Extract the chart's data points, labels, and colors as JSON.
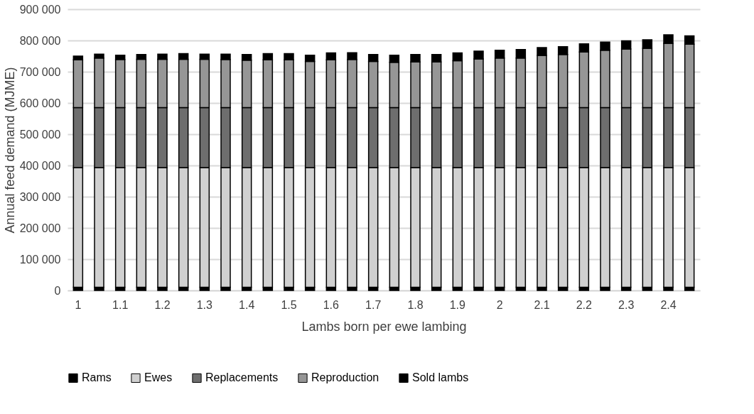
{
  "chart_data": {
    "type": "bar",
    "stacked": true,
    "xlabel": "Lambs born per ewe lambing",
    "ylabel": "Annual feed demand (MJME)",
    "categories": [
      "1",
      null,
      "1.1",
      null,
      "1.2",
      null,
      "1.3",
      null,
      "1.4",
      null,
      "1.5",
      null,
      "1.6",
      null,
      "1.7",
      null,
      "1.8",
      null,
      "1.9",
      null,
      "2",
      null,
      "2.1",
      null,
      "2.2",
      null,
      "2.3",
      null,
      "2.4",
      null
    ],
    "series": [
      {
        "name": "Rams",
        "color": "#000000",
        "values": [
          10000,
          10000,
          10000,
          10000,
          10000,
          10000,
          10000,
          10000,
          10000,
          10000,
          10000,
          10000,
          10000,
          10000,
          10000,
          10000,
          10000,
          10000,
          10000,
          10000,
          10000,
          10000,
          10000,
          10000,
          10000,
          10000,
          10000,
          10000,
          10000,
          10000
        ]
      },
      {
        "name": "Ewes",
        "color": "#d0d0d0",
        "values": [
          383000,
          383000,
          383000,
          383000,
          383000,
          383000,
          383000,
          383000,
          383000,
          383000,
          383000,
          383000,
          383000,
          383000,
          383000,
          383000,
          383000,
          383000,
          383000,
          383000,
          383000,
          383000,
          383000,
          383000,
          383000,
          383000,
          383000,
          383000,
          383000,
          383000
        ]
      },
      {
        "name": "Replacements",
        "color": "#6e6e6e",
        "values": [
          192000,
          192000,
          192000,
          192000,
          192000,
          192000,
          192000,
          192000,
          192000,
          192000,
          192000,
          192000,
          192000,
          192000,
          192000,
          192000,
          192000,
          192000,
          192000,
          192000,
          192000,
          192000,
          192000,
          192000,
          192000,
          192000,
          192000,
          192000,
          192000,
          192000
        ]
      },
      {
        "name": "Reproduction",
        "color": "#969696",
        "values": [
          153000,
          159000,
          154000,
          155000,
          155000,
          155000,
          155000,
          154000,
          152000,
          153000,
          153000,
          148000,
          153000,
          154000,
          148000,
          145000,
          146000,
          146000,
          150000,
          156000,
          159000,
          159000,
          167000,
          170000,
          178000,
          184000,
          188000,
          190000,
          206000,
          203000
        ]
      },
      {
        "name": "Sold lambs",
        "color": "#000000",
        "values": [
          12000,
          12000,
          14000,
          15000,
          16000,
          18000,
          16000,
          17000,
          18000,
          20000,
          20000,
          20000,
          22000,
          22000,
          22000,
          23000,
          24000,
          24000,
          25000,
          25000,
          25000,
          27000,
          25000,
          25000,
          26000,
          26000,
          26000,
          27000,
          27000,
          27000
        ]
      }
    ],
    "ylim": [
      0,
      900000
    ],
    "yticks": [
      {
        "value": 0,
        "label": "0"
      },
      {
        "value": 100000,
        "label": "100 000"
      },
      {
        "value": 200000,
        "label": "200 000"
      },
      {
        "value": 300000,
        "label": "300 000"
      },
      {
        "value": 400000,
        "label": "400 000"
      },
      {
        "value": 500000,
        "label": "500 000"
      },
      {
        "value": 600000,
        "label": "600 000"
      },
      {
        "value": 700000,
        "label": "700 000"
      },
      {
        "value": 800000,
        "label": "800 000"
      },
      {
        "value": 900000,
        "label": "900 000"
      }
    ],
    "grid": "y",
    "legend": "bottom"
  }
}
